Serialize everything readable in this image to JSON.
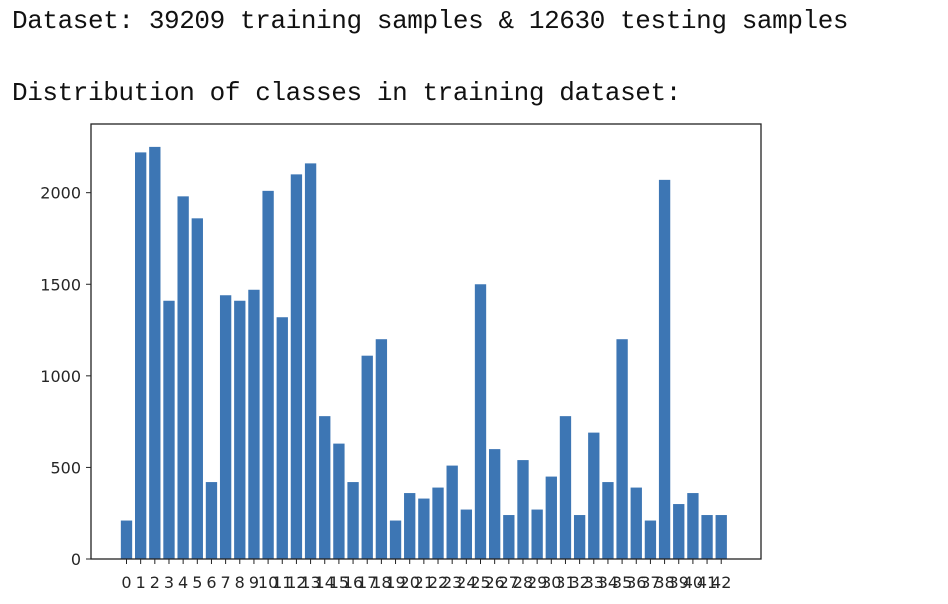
{
  "output": {
    "dataset_line": "Dataset: 39209 training samples & 12630 testing samples",
    "distribution_line": "Distribution of classes in training dataset:"
  },
  "chart_data": {
    "type": "bar",
    "categories": [
      "0",
      "1",
      "2",
      "3",
      "4",
      "5",
      "6",
      "7",
      "8",
      "9",
      "10",
      "11",
      "12",
      "13",
      "14",
      "15",
      "16",
      "17",
      "18",
      "19",
      "20",
      "21",
      "22",
      "23",
      "24",
      "25",
      "26",
      "27",
      "28",
      "29",
      "30",
      "31",
      "32",
      "33",
      "34",
      "35",
      "36",
      "37",
      "38",
      "39",
      "40",
      "41",
      "42"
    ],
    "values": [
      210,
      2220,
      2250,
      1410,
      1980,
      1860,
      420,
      1440,
      1410,
      1470,
      2010,
      1320,
      2100,
      2160,
      780,
      630,
      420,
      1110,
      1200,
      210,
      360,
      330,
      390,
      510,
      270,
      1500,
      600,
      240,
      540,
      270,
      450,
      780,
      240,
      690,
      420,
      1200,
      390,
      210,
      2070,
      300,
      360,
      240,
      240
    ],
    "yticks": [
      0,
      500,
      1000,
      1500,
      2000
    ],
    "ylim": [
      0,
      2375
    ],
    "bar_color": "#3d76b4",
    "grid": false,
    "title": "",
    "xlabel": "",
    "ylabel": ""
  }
}
